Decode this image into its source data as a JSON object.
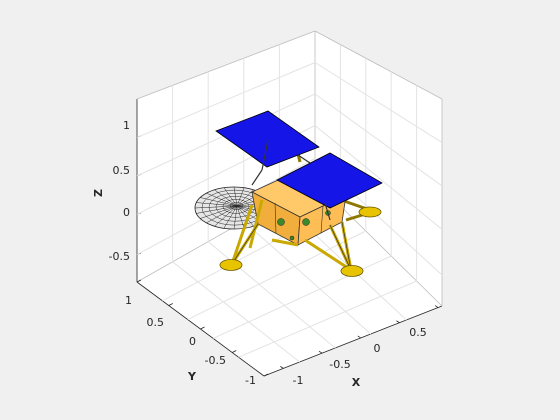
{
  "chart_data": {
    "type": "3d-model-plot",
    "view": "isometric",
    "axes": {
      "x": {
        "label": "X",
        "ticks": [
          "-1",
          "-0.5",
          "0",
          "0.5"
        ]
      },
      "y": {
        "label": "Y",
        "ticks": [
          "-1",
          "-0.5",
          "0",
          "0.5",
          "1"
        ]
      },
      "z": {
        "label": "Z",
        "ticks": [
          "-0.5",
          "0",
          "0.5",
          "1"
        ]
      },
      "grid": true,
      "box": true
    },
    "model": {
      "parts": [
        {
          "name": "solar-panel-rear",
          "color": "#1515e8"
        },
        {
          "name": "solar-panel-front",
          "color": "#1515e8"
        },
        {
          "name": "body",
          "color": "#ffbe55"
        },
        {
          "name": "antenna-dish",
          "color": "#d8d8d8"
        },
        {
          "name": "legs",
          "color": "#c9a800"
        },
        {
          "name": "footpads",
          "color": "#e8c400"
        }
      ]
    }
  }
}
